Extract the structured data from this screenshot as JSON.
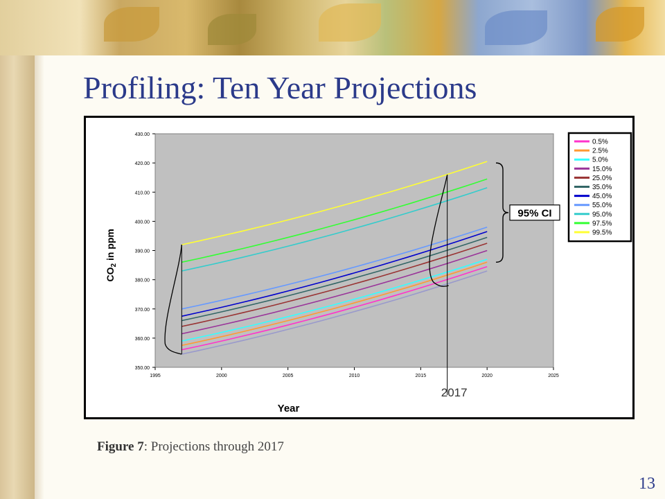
{
  "slide": {
    "title": "Profiling: Ten Year Projections",
    "caption_label": "Figure 7",
    "caption_text": ": Projections through 2017",
    "slide_number": "13"
  },
  "chart_data": {
    "type": "line",
    "xlabel": "Year",
    "ylabel_main": "CO",
    "ylabel_sub": "2",
    "ylabel_tail": " in ppm",
    "xlim": [
      1995,
      2025
    ],
    "ylim": [
      350,
      430
    ],
    "x_ticks": [
      "1995",
      "2000",
      "2005",
      "2010",
      "2015",
      "2020",
      "2025"
    ],
    "y_ticks": [
      "350.00",
      "360.00",
      "370.00",
      "380.00",
      "390.00",
      "400.00",
      "410.00",
      "420.00",
      "430.00"
    ],
    "x": [
      1997,
      2020
    ],
    "series": [
      {
        "name": "0.5%",
        "color": "#ff33cc",
        "values": [
          356.0,
          384.5
        ]
      },
      {
        "name": "2.5%",
        "color": "#ff9933",
        "values": [
          357.5,
          386.0
        ]
      },
      {
        "name": "5.0%",
        "color": "#33ffff",
        "values": [
          359.0,
          387.0
        ]
      },
      {
        "name": "15.0%",
        "color": "#993399",
        "values": [
          361.5,
          390.0
        ]
      },
      {
        "name": "25.0%",
        "color": "#993333",
        "values": [
          364.0,
          392.5
        ]
      },
      {
        "name": "35.0%",
        "color": "#336666",
        "values": [
          366.0,
          394.5
        ]
      },
      {
        "name": "45.0%",
        "color": "#0000cc",
        "values": [
          367.5,
          396.5
        ]
      },
      {
        "name": "55.0%",
        "color": "#6699ff",
        "values": [
          370.0,
          398.0
        ]
      },
      {
        "name": "95.0%",
        "color": "#33cccc",
        "values": [
          383.0,
          411.5
        ]
      },
      {
        "name": "97.5%",
        "color": "#33ff33",
        "values": [
          386.0,
          414.5
        ]
      },
      {
        "name": "99.5%",
        "color": "#ffff33",
        "values": [
          392.0,
          420.5
        ]
      }
    ],
    "lowest_series": {
      "color": "#9999cc",
      "values": [
        354.5,
        383.0
      ]
    },
    "annotation_ci": "95% CI",
    "annotation_year": "2017",
    "plot_background": "#c0c0c0",
    "legend_position": "right",
    "grid": false
  }
}
